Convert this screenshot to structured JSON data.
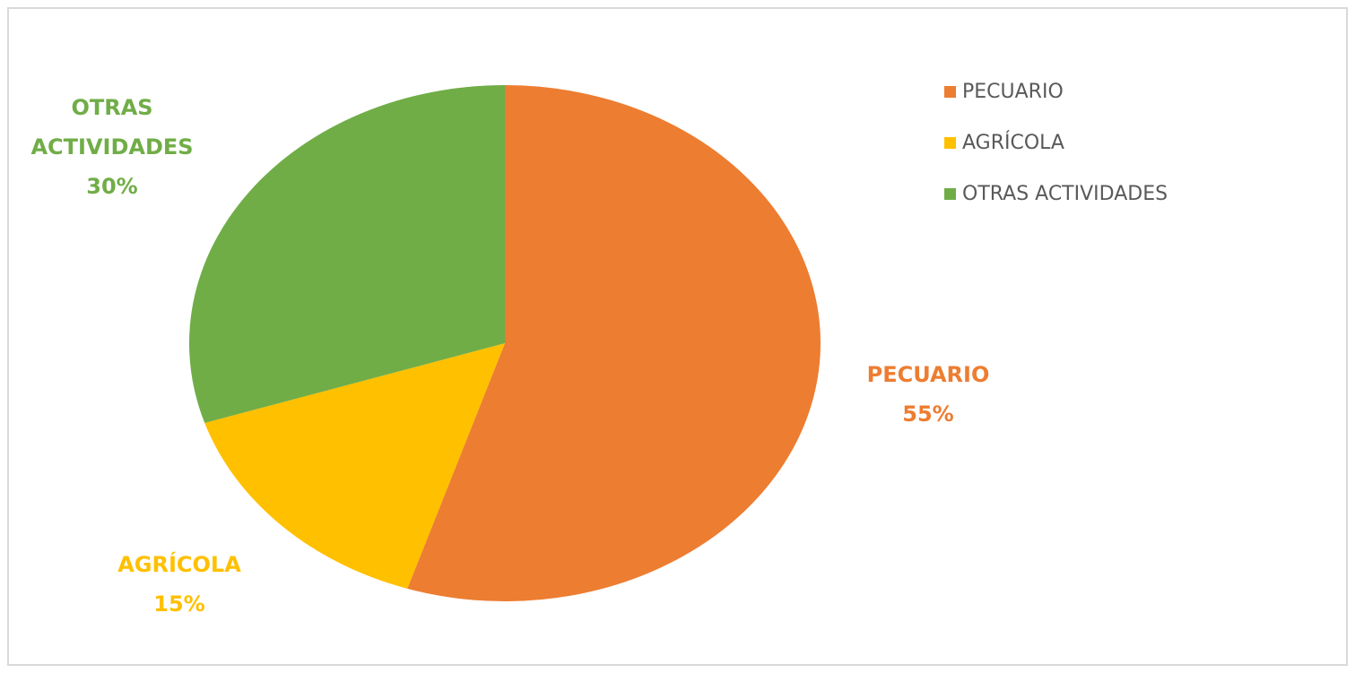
{
  "chart_data": {
    "type": "pie",
    "categories": [
      "PECUARIO",
      "AGRÍCOLA",
      "OTRAS ACTIVIDADES"
    ],
    "values": [
      55,
      15,
      30
    ],
    "value_labels": [
      "55%",
      "15%",
      "30%"
    ],
    "colors": [
      "#ED7D31",
      "#FFC000",
      "#70AD47"
    ],
    "legend": "top-right"
  }
}
